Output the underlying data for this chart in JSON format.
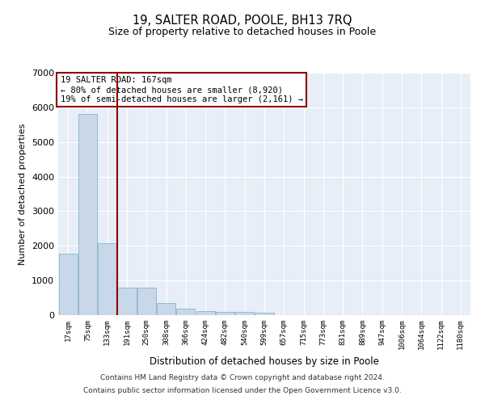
{
  "title": "19, SALTER ROAD, POOLE, BH13 7RQ",
  "subtitle": "Size of property relative to detached houses in Poole",
  "xlabel": "Distribution of detached houses by size in Poole",
  "ylabel": "Number of detached properties",
  "bar_color": "#c8d8e8",
  "bar_edge_color": "#7aaac8",
  "background_color": "#e8eef8",
  "grid_color": "#ffffff",
  "vline_color": "#8b0000",
  "vline_x_index": 3,
  "annotation_text": "19 SALTER ROAD: 167sqm\n← 80% of detached houses are smaller (8,920)\n19% of semi-detached houses are larger (2,161) →",
  "annotation_box_edgecolor": "#8b0000",
  "categories": [
    "17sqm",
    "75sqm",
    "133sqm",
    "191sqm",
    "250sqm",
    "308sqm",
    "366sqm",
    "424sqm",
    "482sqm",
    "540sqm",
    "599sqm",
    "657sqm",
    "715sqm",
    "773sqm",
    "831sqm",
    "889sqm",
    "947sqm",
    "1006sqm",
    "1064sqm",
    "1122sqm",
    "1180sqm"
  ],
  "values": [
    1780,
    5800,
    2080,
    790,
    790,
    340,
    195,
    120,
    100,
    90,
    80,
    0,
    0,
    0,
    0,
    0,
    0,
    0,
    0,
    0,
    0
  ],
  "ylim": [
    0,
    7000
  ],
  "yticks": [
    0,
    1000,
    2000,
    3000,
    4000,
    5000,
    6000,
    7000
  ],
  "footer_line1": "Contains HM Land Registry data © Crown copyright and database right 2024.",
  "footer_line2": "Contains public sector information licensed under the Open Government Licence v3.0."
}
